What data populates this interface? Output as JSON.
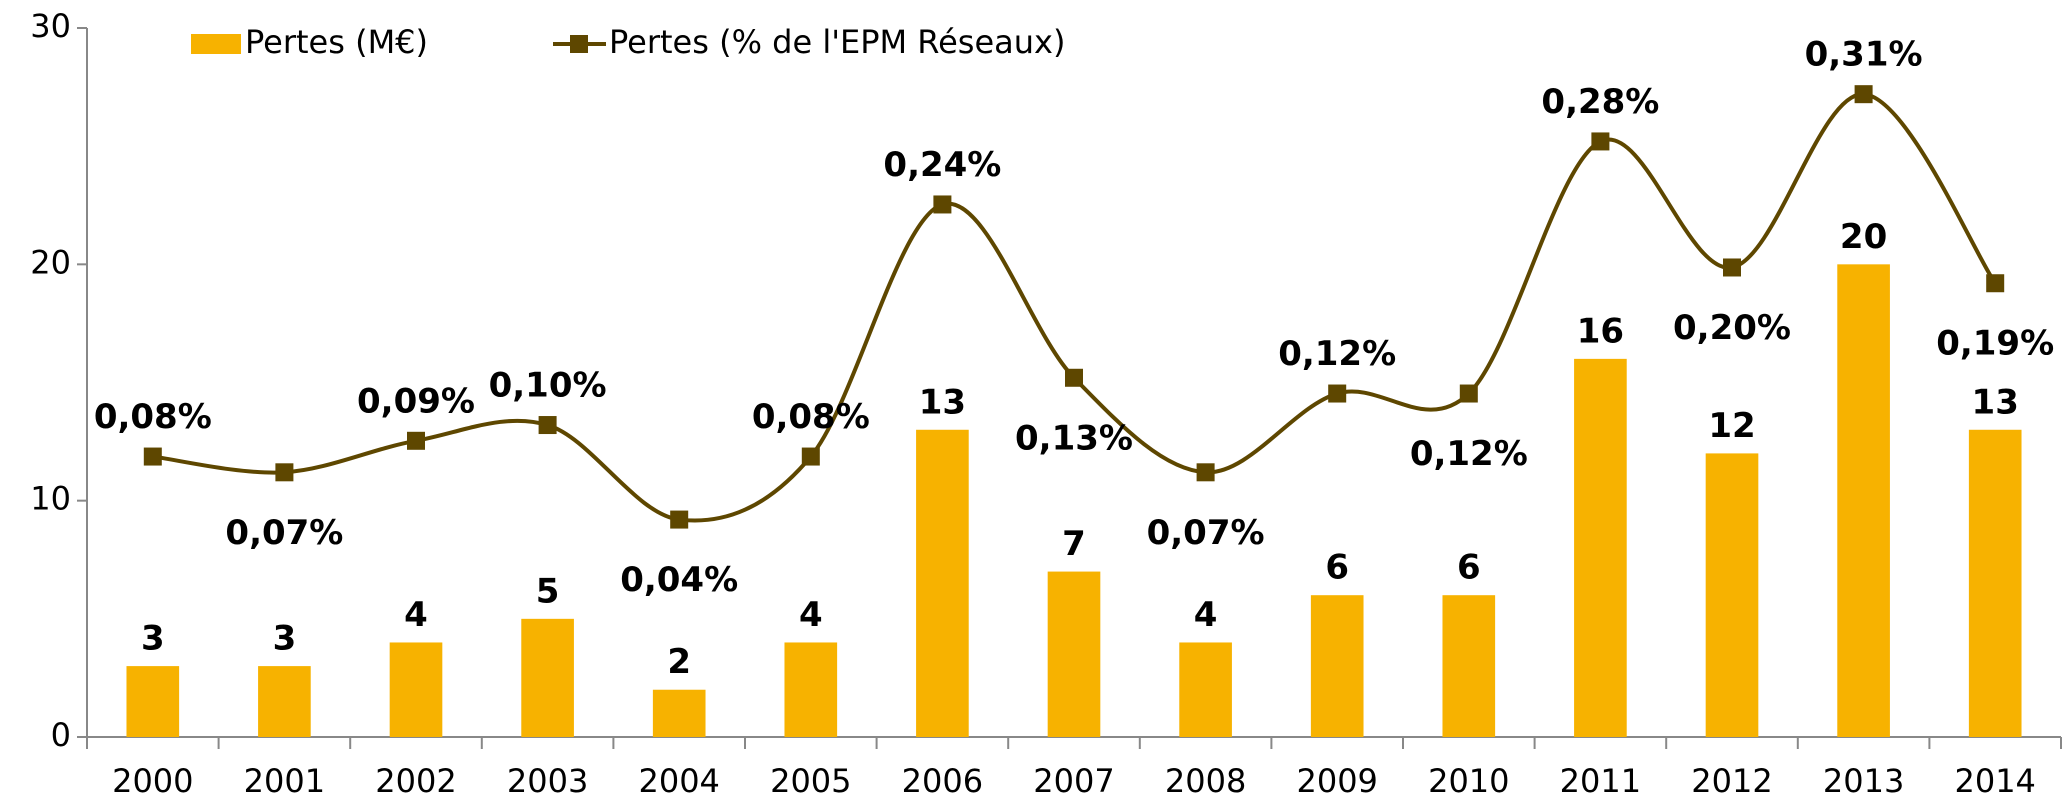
{
  "chart_data": {
    "type": "bar_line",
    "categories": [
      "2000",
      "2001",
      "2002",
      "2003",
      "2004",
      "2005",
      "2006",
      "2007",
      "2008",
      "2009",
      "2010",
      "2011",
      "2012",
      "2013",
      "2014"
    ],
    "series": [
      {
        "name": "Pertes (M€)",
        "type": "bar",
        "color": "#f7b200",
        "values": [
          3,
          3,
          4,
          5,
          2,
          4,
          13,
          7,
          4,
          6,
          6,
          16,
          12,
          20,
          13
        ]
      },
      {
        "name": "Pertes (% de l'EPM Réseaux)",
        "type": "line",
        "axis": "y2",
        "color": "#5e4700",
        "values": [
          0.08,
          0.07,
          0.09,
          0.1,
          0.04,
          0.08,
          0.24,
          0.13,
          0.07,
          0.12,
          0.12,
          0.28,
          0.2,
          0.31,
          0.19
        ],
        "value_labels": [
          "0,08%",
          "0,07%",
          "0,09%",
          "0,10%",
          "0,04%",
          "0,08%",
          "0,24%",
          "0,13%",
          "0,07%",
          "0,12%",
          "0,12%",
          "0,28%",
          "0,20%",
          "0,31%",
          "0,19%"
        ]
      }
    ],
    "ylim": [
      0,
      30
    ],
    "yticks": [
      0,
      10,
      20,
      30
    ],
    "y2lim": [
      -0.098,
      0.352
    ],
    "grid": false,
    "legend": "top-left"
  }
}
